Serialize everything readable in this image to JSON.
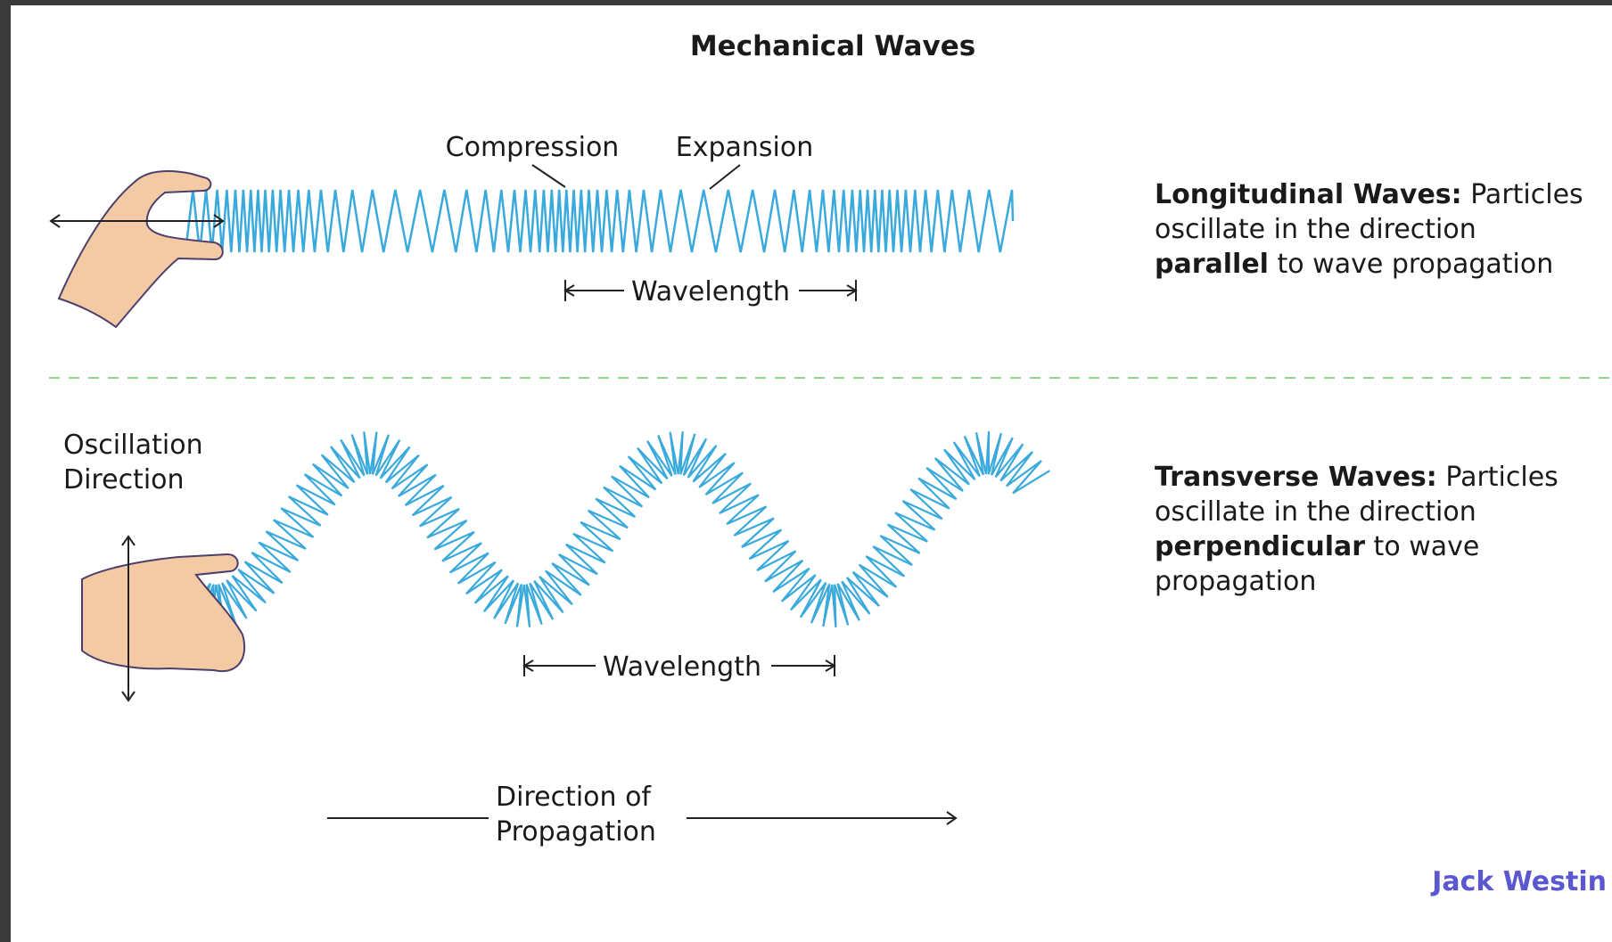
{
  "title": "Mechanical Waves",
  "longitudinal": {
    "compression_label": "Compression",
    "expansion_label": "Expansion",
    "wavelength_label": "Wavelength",
    "description": [
      [
        {
          "text": "Longitudinal Waves:",
          "bold": true
        },
        {
          "text": " Particles",
          "bold": false
        }
      ],
      [
        {
          "text": "oscillate in the direction",
          "bold": false
        }
      ],
      [
        {
          "text": "parallel",
          "bold": true
        },
        {
          "text": " to wave propagation",
          "bold": false
        }
      ]
    ]
  },
  "transverse": {
    "oscillation_label": [
      "Oscillation",
      "Direction"
    ],
    "wavelength_label": "Wavelength",
    "description": [
      [
        {
          "text": "Transverse Waves:",
          "bold": true
        },
        {
          "text": " Particles",
          "bold": false
        }
      ],
      [
        {
          "text": "oscillate in the direction",
          "bold": false
        }
      ],
      [
        {
          "text": "perpendicular",
          "bold": true
        },
        {
          "text": " to wave",
          "bold": false
        }
      ],
      [
        {
          "text": "propagation",
          "bold": false
        }
      ]
    ],
    "propagation_label": [
      "Direction of",
      "Propagation"
    ]
  },
  "brand": "Jack Westin"
}
